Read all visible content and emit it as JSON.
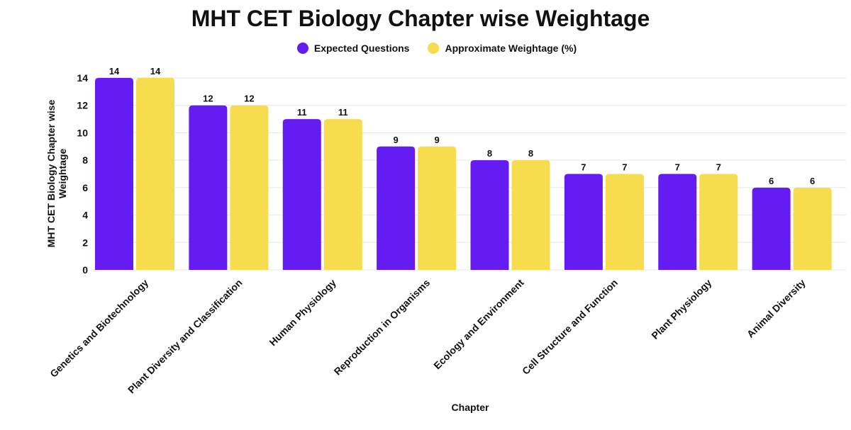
{
  "chart_data": {
    "type": "bar",
    "title": "MHT CET Biology Chapter wise Weightage",
    "xlabel": "Chapter",
    "ylabel": "MHT CET Biology Chapter wise Weightage",
    "ylim": [
      0,
      14
    ],
    "yticks": [
      0,
      2,
      4,
      6,
      8,
      10,
      12,
      14
    ],
    "grid": true,
    "legend_position": "top-center",
    "categories": [
      "Genetics and Biotechnology",
      "Plant Diversity and Classification",
      "Human Physiology",
      "Reproduction in Organisms",
      "Ecology and Environment",
      "Cell Structure and Function",
      "Plant Physiology",
      "Animal Diversity"
    ],
    "series": [
      {
        "name": "Expected Questions",
        "color": "#651cf2",
        "values": [
          14,
          12,
          11,
          9,
          8,
          7,
          7,
          6
        ]
      },
      {
        "name": "Approximate Weightage (%)",
        "color": "#f8dc4f",
        "values": [
          14,
          12,
          11,
          9,
          8,
          7,
          7,
          6
        ]
      }
    ]
  }
}
